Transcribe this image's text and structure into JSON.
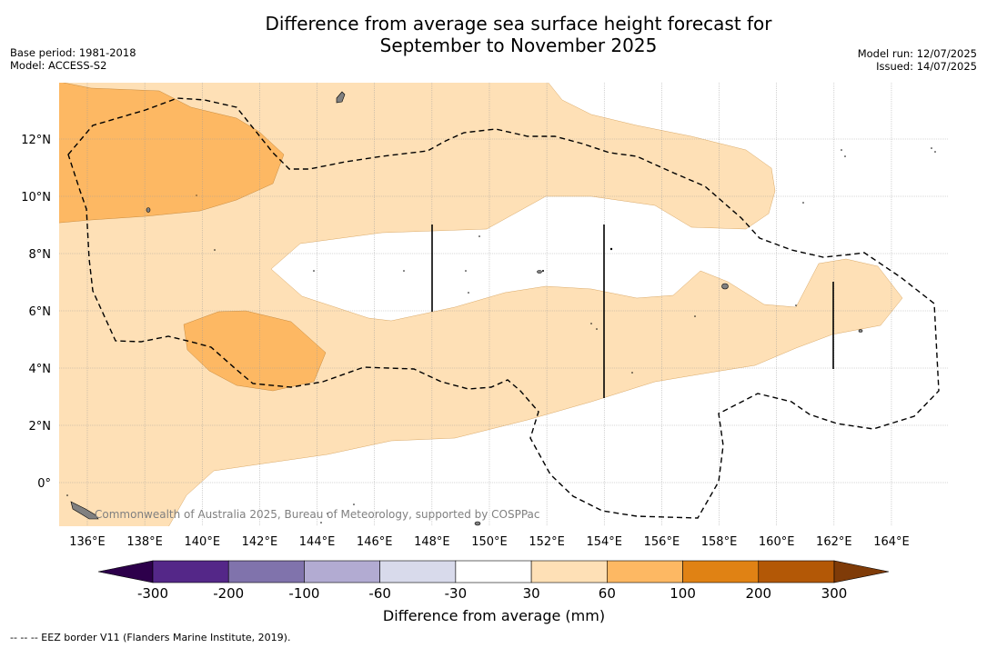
{
  "header": {
    "title_line1": "Difference from average sea surface height forecast for",
    "title_line2": "September to November 2025",
    "base_period": "Base period: 1981-2018",
    "model": "Model: ACCESS-S2",
    "model_run": "Model run: 12/07/2025",
    "issued": "Issued: 14/07/2025"
  },
  "map": {
    "lon_range": [
      135,
      166
    ],
    "lat_range": [
      -1.5,
      14
    ],
    "lon_ticks": [
      "136°E",
      "138°E",
      "140°E",
      "142°E",
      "144°E",
      "146°E",
      "148°E",
      "150°E",
      "152°E",
      "154°E",
      "156°E",
      "158°E",
      "160°E",
      "162°E",
      "164°E"
    ],
    "lat_ticks": [
      "12°N",
      "10°N",
      "8°N",
      "6°N",
      "4°N",
      "2°N",
      "0°"
    ],
    "watermark": "Commonwealth of Australia 2025, Bureau of Meteorology, supported by COSPPac",
    "legend_item": "--  --  -- EEZ border V11 (Flanders Marine Institute, 2019)."
  },
  "colorbar": {
    "label": "Difference from average (mm)",
    "ticks": [
      "-300",
      "-200",
      "-100",
      "-60",
      "-30",
      "30",
      "60",
      "100",
      "200",
      "300"
    ],
    "colors": [
      "#542788",
      "#8073ac",
      "#b2abd2",
      "#d8daeb",
      "#ffffff",
      "#fee0b6",
      "#fdb863",
      "#e08214",
      "#b35806"
    ],
    "under_color": "#2d004b",
    "over_color": "#7f3b08"
  }
}
